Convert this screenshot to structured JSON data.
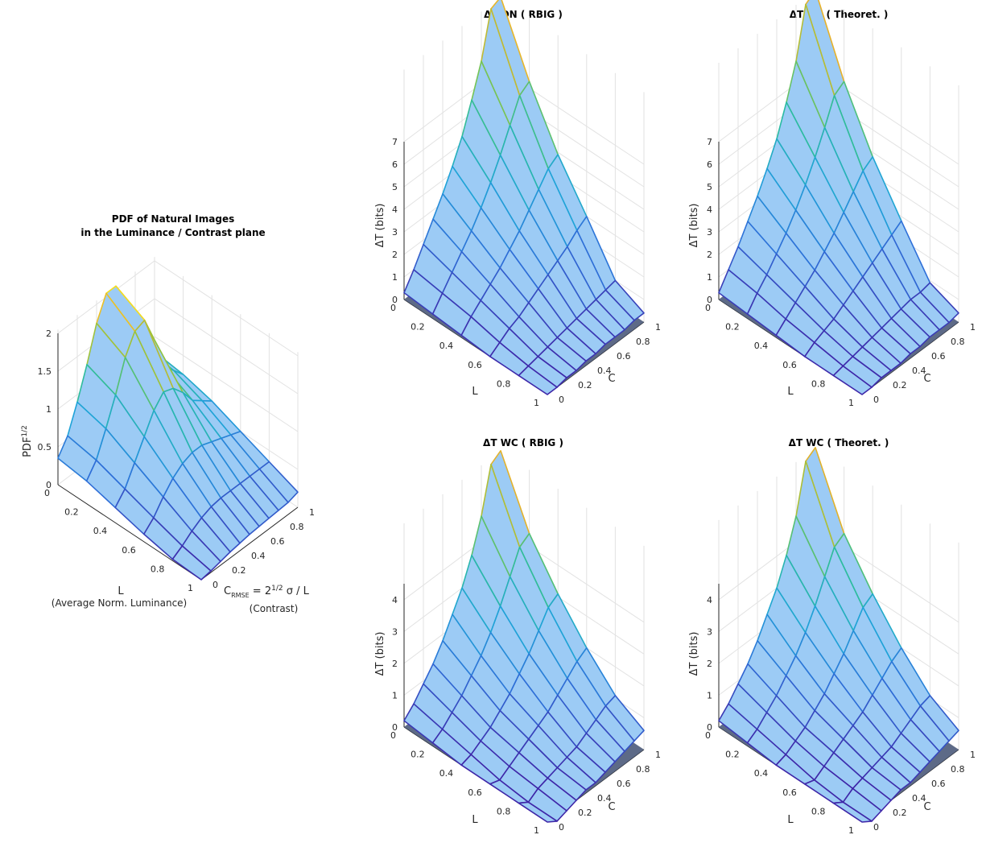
{
  "chart_data": [
    {
      "id": "pdf",
      "type": "surface3d",
      "title_lines": [
        "PDF of Natural Images",
        "in the Luminance / Contrast plane"
      ],
      "zlabel": "PDF",
      "zlabel_sup": "1/2",
      "xlabel": "L",
      "xlabel_sub": "(Average Norm. Luminance)",
      "ylabel_parts": {
        "c": "C",
        "sub": "RMSE",
        "eq": " = 2",
        "sup": "1/2",
        "rest": " σ / L"
      },
      "ylabel_sub": "(Contrast)",
      "x_ticks": [
        "0",
        "0.2",
        "0.4",
        "0.6",
        "0.8",
        "1"
      ],
      "y_ticks": [
        "0",
        "0.2",
        "0.4",
        "0.6",
        "0.8",
        "1"
      ],
      "z_ticks": [
        "0",
        "0.5",
        "1",
        "1.5",
        "2"
      ],
      "zlim": [
        0,
        2
      ],
      "surface": [
        [
          0.35,
          0.55,
          0.9,
          1.3,
          1.75,
          2.05,
          2.05,
          1.6,
          1.1,
          0.95,
          0.8
        ],
        [
          0.3,
          0.48,
          0.8,
          1.15,
          1.55,
          1.8,
          1.85,
          1.5,
          1.05,
          0.9,
          0.75
        ],
        [
          0.2,
          0.35,
          0.6,
          0.85,
          1.1,
          1.25,
          1.2,
          1.05,
          0.85,
          0.75,
          0.65
        ],
        [
          0.1,
          0.22,
          0.4,
          0.55,
          0.65,
          0.7,
          0.7,
          0.65,
          0.6,
          0.55,
          0.5
        ],
        [
          0.02,
          0.1,
          0.2,
          0.28,
          0.33,
          0.35,
          0.35,
          0.35,
          0.35,
          0.35,
          0.35
        ],
        [
          0.0,
          0.02,
          0.05,
          0.08,
          0.1,
          0.12,
          0.13,
          0.14,
          0.15,
          0.16,
          0.2
        ]
      ]
    },
    {
      "id": "dn_rbig",
      "type": "surface3d",
      "title": "ΔT DN ( RBIG )",
      "zlabel": "ΔT (bits)",
      "xlabel": "L",
      "ylabel": "C",
      "x_ticks": [
        "0",
        "0.2",
        "0.4",
        "0.6",
        "0.8",
        "1"
      ],
      "y_ticks": [
        "0",
        "0.2",
        "0.4",
        "0.6",
        "0.8",
        "1"
      ],
      "z_ticks": [
        "0",
        "1",
        "2",
        "3",
        "4",
        "5",
        "6",
        "7"
      ],
      "zlim": [
        0,
        7
      ],
      "surface": [
        [
          0.3,
          1.0,
          1.8,
          2.6,
          3.4,
          4.3,
          5.3,
          6.6,
          8.0,
          10.0,
          10.2
        ],
        [
          0.2,
          0.8,
          1.4,
          2.0,
          2.6,
          3.3,
          4.1,
          5.0,
          6.0,
          7.0,
          7.3
        ],
        [
          0.1,
          0.6,
          1.0,
          1.4,
          1.8,
          2.3,
          2.8,
          3.4,
          4.0,
          4.6,
          4.9
        ],
        [
          0.0,
          0.3,
          0.6,
          0.8,
          1.1,
          1.4,
          1.7,
          2.0,
          2.3,
          2.7,
          3.0
        ],
        [
          0.0,
          0.1,
          0.2,
          0.3,
          0.4,
          0.5,
          0.6,
          0.7,
          0.8,
          0.9,
          1.0
        ],
        [
          0.0,
          0.0,
          0.1,
          0.1,
          0.2,
          0.2,
          0.3,
          0.3,
          0.3,
          0.4,
          0.4
        ]
      ]
    },
    {
      "id": "dn_theo",
      "type": "surface3d",
      "title": "ΔT DN ( Theoret. )",
      "zlabel": "ΔT (bits)",
      "xlabel": "L",
      "ylabel": "C",
      "x_ticks": [
        "0",
        "0.2",
        "0.4",
        "0.6",
        "0.8",
        "1"
      ],
      "y_ticks": [
        "0",
        "0.2",
        "0.4",
        "0.6",
        "0.8",
        "1"
      ],
      "z_ticks": [
        "0",
        "1",
        "2",
        "3",
        "4",
        "5",
        "6",
        "7"
      ],
      "zlim": [
        0,
        7
      ],
      "surface": [
        [
          0.3,
          1.0,
          1.7,
          2.5,
          3.3,
          4.2,
          5.2,
          6.5,
          8.0,
          10.2,
          10.5
        ],
        [
          0.2,
          0.8,
          1.3,
          1.9,
          2.5,
          3.2,
          4.0,
          4.9,
          5.9,
          7.0,
          7.3
        ],
        [
          0.1,
          0.5,
          0.9,
          1.3,
          1.7,
          2.2,
          2.7,
          3.3,
          3.9,
          4.5,
          4.8
        ],
        [
          0.0,
          0.3,
          0.5,
          0.7,
          1.0,
          1.3,
          1.6,
          1.9,
          2.2,
          2.5,
          2.8
        ],
        [
          0.0,
          0.1,
          0.2,
          0.3,
          0.4,
          0.5,
          0.6,
          0.7,
          0.8,
          0.8,
          0.9
        ],
        [
          0.0,
          0.0,
          0.1,
          0.1,
          0.1,
          0.2,
          0.2,
          0.3,
          0.3,
          0.3,
          0.4
        ]
      ]
    },
    {
      "id": "wc_rbig",
      "type": "surface3d",
      "title": "ΔT WC ( RBIG )",
      "zlabel": "ΔT (bits)",
      "xlabel": "L",
      "ylabel": "C",
      "x_ticks": [
        "0",
        "0.2",
        "0.4",
        "0.6",
        "0.8",
        "1"
      ],
      "y_ticks": [
        "0",
        "0.2",
        "0.4",
        "0.6",
        "0.8",
        "1"
      ],
      "z_ticks": [
        "0",
        "1",
        "2",
        "3",
        "4"
      ],
      "zlim": [
        0,
        4.5
      ],
      "surface": [
        [
          0.2,
          0.5,
          0.9,
          1.3,
          1.8,
          2.4,
          3.0,
          3.8,
          4.8,
          6.2,
          6.4
        ],
        [
          0.1,
          0.3,
          0.6,
          0.9,
          1.3,
          1.7,
          2.2,
          2.8,
          3.5,
          4.2,
          4.4
        ],
        [
          0.0,
          0.1,
          0.3,
          0.5,
          0.8,
          1.1,
          1.5,
          1.9,
          2.4,
          2.9,
          3.1
        ],
        [
          0.0,
          -0.1,
          0.1,
          0.3,
          0.5,
          0.7,
          0.9,
          1.2,
          1.5,
          1.8,
          2.0
        ],
        [
          0.0,
          -0.2,
          0.0,
          0.1,
          0.2,
          0.3,
          0.4,
          0.6,
          0.8,
          1.0,
          1.1
        ],
        [
          0.0,
          -0.2,
          -0.1,
          0.0,
          0.1,
          0.1,
          0.2,
          0.3,
          0.4,
          0.5,
          0.6
        ]
      ]
    },
    {
      "id": "wc_theo",
      "type": "surface3d",
      "title": "ΔT WC ( Theoret. )",
      "zlabel": "ΔT (bits)",
      "xlabel": "L",
      "ylabel": "C",
      "x_ticks": [
        "0",
        "0.2",
        "0.4",
        "0.6",
        "0.8",
        "1"
      ],
      "y_ticks": [
        "0",
        "0.2",
        "0.4",
        "0.6",
        "0.8",
        "1"
      ],
      "z_ticks": [
        "0",
        "1",
        "2",
        "3",
        "4"
      ],
      "zlim": [
        0,
        4.5
      ],
      "surface": [
        [
          0.2,
          0.5,
          0.9,
          1.3,
          1.8,
          2.4,
          3.0,
          3.8,
          4.8,
          6.3,
          6.5
        ],
        [
          0.1,
          0.3,
          0.6,
          0.9,
          1.3,
          1.7,
          2.2,
          2.8,
          3.5,
          4.2,
          4.4
        ],
        [
          0.0,
          0.1,
          0.3,
          0.5,
          0.8,
          1.1,
          1.5,
          1.9,
          2.4,
          2.9,
          3.1
        ],
        [
          0.0,
          -0.1,
          0.1,
          0.3,
          0.5,
          0.7,
          0.9,
          1.2,
          1.5,
          1.8,
          2.0
        ],
        [
          0.0,
          -0.2,
          0.0,
          0.1,
          0.2,
          0.3,
          0.4,
          0.6,
          0.8,
          1.0,
          1.1
        ],
        [
          0.0,
          -0.2,
          -0.1,
          0.0,
          0.1,
          0.1,
          0.2,
          0.3,
          0.4,
          0.5,
          0.6
        ]
      ]
    }
  ],
  "colors": {
    "surface_fill": "#9ccbf5",
    "floor_fill": "#4b5a7a",
    "grid": "#e2e2e2",
    "axis": "#262626",
    "colormap": [
      "#3e26a8",
      "#2e6fd8",
      "#1fa3d8",
      "#2bbca0",
      "#8cc63f",
      "#e7b12a",
      "#f9f21a"
    ]
  }
}
